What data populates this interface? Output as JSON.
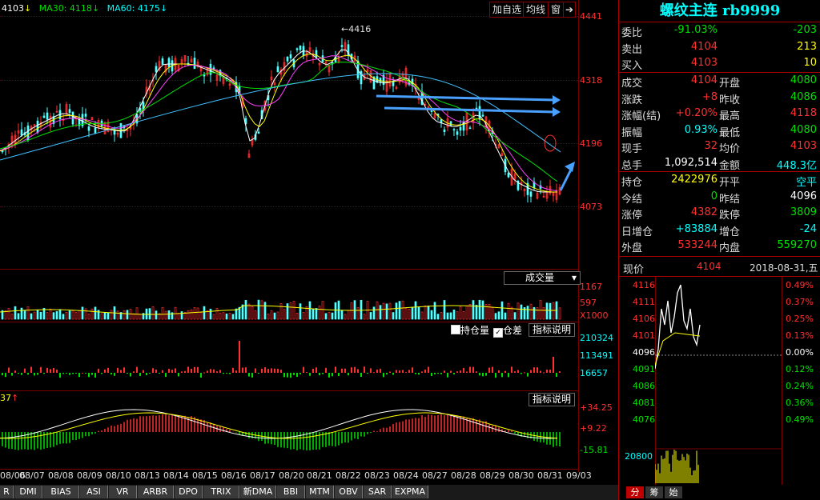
{
  "header": {
    "ma_price": "4103",
    "ma30": "MA30: 4118",
    "ma60": "MA60: 4175",
    "peak_label": "4416",
    "buttons": [
      "加自选",
      "均线",
      "窗"
    ]
  },
  "price_axis": [
    "4441",
    "4318",
    "4196",
    "4073"
  ],
  "volume_panel": {
    "title": "成交量",
    "axis": [
      "1167",
      "597",
      "X1000"
    ]
  },
  "oi_panel": {
    "checkbox1": "持仓量",
    "checkbox2": "仓差",
    "help": "指标说明",
    "axis": [
      "210324",
      "113491",
      "16657"
    ]
  },
  "macd_panel": {
    "prefix": "37",
    "help": "指标说明",
    "axis": [
      "+34.25",
      "+9.22",
      "-15.81"
    ]
  },
  "dates": [
    "08/06",
    "08/07",
    "08/08",
    "08/09",
    "08/10",
    "08/13",
    "08/14",
    "08/15",
    "08/16",
    "08/17",
    "08/20",
    "08/21",
    "08/22",
    "08/23",
    "08/24",
    "08/27",
    "08/28",
    "08/29",
    "08/30",
    "08/31",
    "09/03"
  ],
  "indicator_tabs": [
    "R",
    "DMI",
    "BIAS",
    "ASI",
    "VR",
    "ARBR",
    "DPO",
    "TRIX",
    "新DMA",
    "BBI",
    "MTM",
    "OBV",
    "SAR",
    "EXPMA"
  ],
  "quote": {
    "title": "螺纹主连 rb9999",
    "rows": [
      {
        "l1": "委比",
        "v1": "-91.03%",
        "c1": "green",
        "l2": "",
        "v2": "-203",
        "c2": "green"
      },
      {
        "l1": "卖出",
        "v1": "4104",
        "c1": "red",
        "l2": "",
        "v2": "213",
        "c2": "yellow"
      },
      {
        "l1": "买入",
        "v1": "4103",
        "c1": "red",
        "l2": "",
        "v2": "10",
        "c2": "yellow"
      },
      {
        "l1": "成交",
        "v1": "4104",
        "c1": "red",
        "l2": "开盘",
        "v2": "4080",
        "c2": "green"
      },
      {
        "l1": "涨跌",
        "v1": "+8",
        "c1": "red",
        "l2": "昨收",
        "v2": "4086",
        "c2": "green"
      },
      {
        "l1": "涨幅(结)",
        "v1": "+0.20%",
        "c1": "red",
        "l2": "最高",
        "v2": "4118",
        "c2": "red"
      },
      {
        "l1": "振幅",
        "v1": "0.93%",
        "c1": "cyan",
        "l2": "最低",
        "v2": "4080",
        "c2": "green"
      },
      {
        "l1": "现手",
        "v1": "32",
        "c1": "red",
        "l2": "均价",
        "v2": "4103",
        "c2": "red"
      },
      {
        "l1": "总手",
        "v1": "1,092,514",
        "c1": "white",
        "l2": "金额",
        "v2": "448.3亿",
        "c2": "cyan"
      },
      {
        "l1": "持仓",
        "v1": "2422976",
        "c1": "yellow",
        "l2": "开平",
        "v2": "空平",
        "c2": "cyan"
      },
      {
        "l1": "今结",
        "v1": "0",
        "c1": "green",
        "l2": "昨结",
        "v2": "4096",
        "c2": "white"
      },
      {
        "l1": "涨停",
        "v1": "4382",
        "c1": "red",
        "l2": "跌停",
        "v2": "3809",
        "c2": "green"
      },
      {
        "l1": "日增仓",
        "v1": "+83884",
        "c1": "cyan",
        "l2": "增仓",
        "v2": "-24",
        "c2": "cyan"
      },
      {
        "l1": "外盘",
        "v1": "533244",
        "c1": "red",
        "l2": "内盘",
        "v2": "559270",
        "c2": "green"
      }
    ]
  },
  "mini": {
    "label": "现价",
    "price": "4104",
    "date": "2018-08-31,五",
    "left_axis": [
      "4116",
      "4111",
      "4106",
      "4101",
      "4096",
      "4091",
      "4086",
      "4081",
      "4076"
    ],
    "right_axis": [
      "0.49%",
      "0.37%",
      "0.25%",
      "0.13%",
      "0.00%",
      "0.12%",
      "0.24%",
      "0.36%",
      "0.49%"
    ],
    "vol_label": "20800",
    "tabs": [
      "分",
      "筹",
      "始"
    ]
  }
}
